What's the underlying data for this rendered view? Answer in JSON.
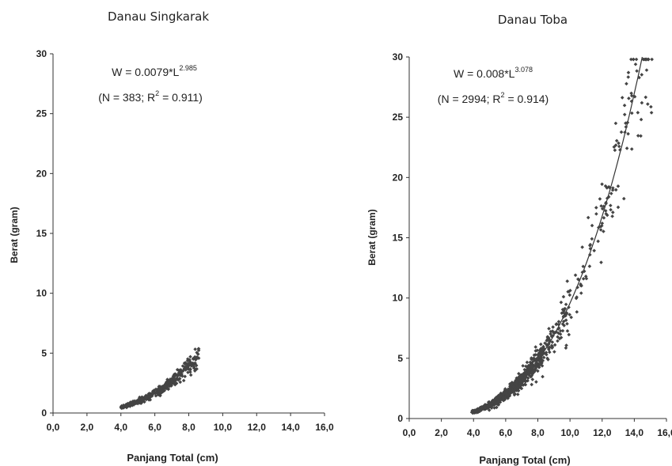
{
  "chart_data": [
    {
      "type": "scatter",
      "title": "Danau Singkarak",
      "xlabel": "Panjang Total (cm)",
      "ylabel": "Berat (gram)",
      "xlim": [
        0,
        16
      ],
      "ylim": [
        0,
        30
      ],
      "xticks": [
        "0,0",
        "2,0",
        "4,0",
        "6,0",
        "8,0",
        "10,0",
        "12,0",
        "14,0",
        "16,0"
      ],
      "yticks": [
        "0",
        "5",
        "10",
        "15",
        "20",
        "25",
        "30"
      ],
      "equation": {
        "base": "W = 0.0079*L",
        "exponent": "2.985"
      },
      "stats": {
        "prefix": "(N = 383; R",
        "exponent": "2",
        "suffix": " = 0.911)"
      },
      "model": {
        "a": 0.0079,
        "b": 2.985,
        "x_range": [
          4.0,
          8.6
        ],
        "n_points": 383
      },
      "trendline": false,
      "marker_color": "#444444"
    },
    {
      "type": "scatter",
      "title": "Danau Toba",
      "xlabel": "Panjang Total (cm)",
      "ylabel": "Berat (gram)",
      "xlim": [
        0,
        16
      ],
      "ylim": [
        0,
        30
      ],
      "xticks": [
        "0,0",
        "2,0",
        "4,0",
        "6,0",
        "8,0",
        "10,0",
        "12,0",
        "14,0",
        "16,0"
      ],
      "yticks": [
        "0",
        "5",
        "10",
        "15",
        "20",
        "25",
        "30"
      ],
      "equation": {
        "base": "W = 0.008*L",
        "exponent": "3.078"
      },
      "stats": {
        "prefix": "(N = 2994; R",
        "exponent": "2",
        "suffix": " = 0.914)"
      },
      "model": {
        "a": 0.008,
        "b": 3.078,
        "x_range": [
          3.8,
          15.2
        ],
        "n_points": 900
      },
      "trendline": true,
      "marker_color": "#444444"
    }
  ]
}
